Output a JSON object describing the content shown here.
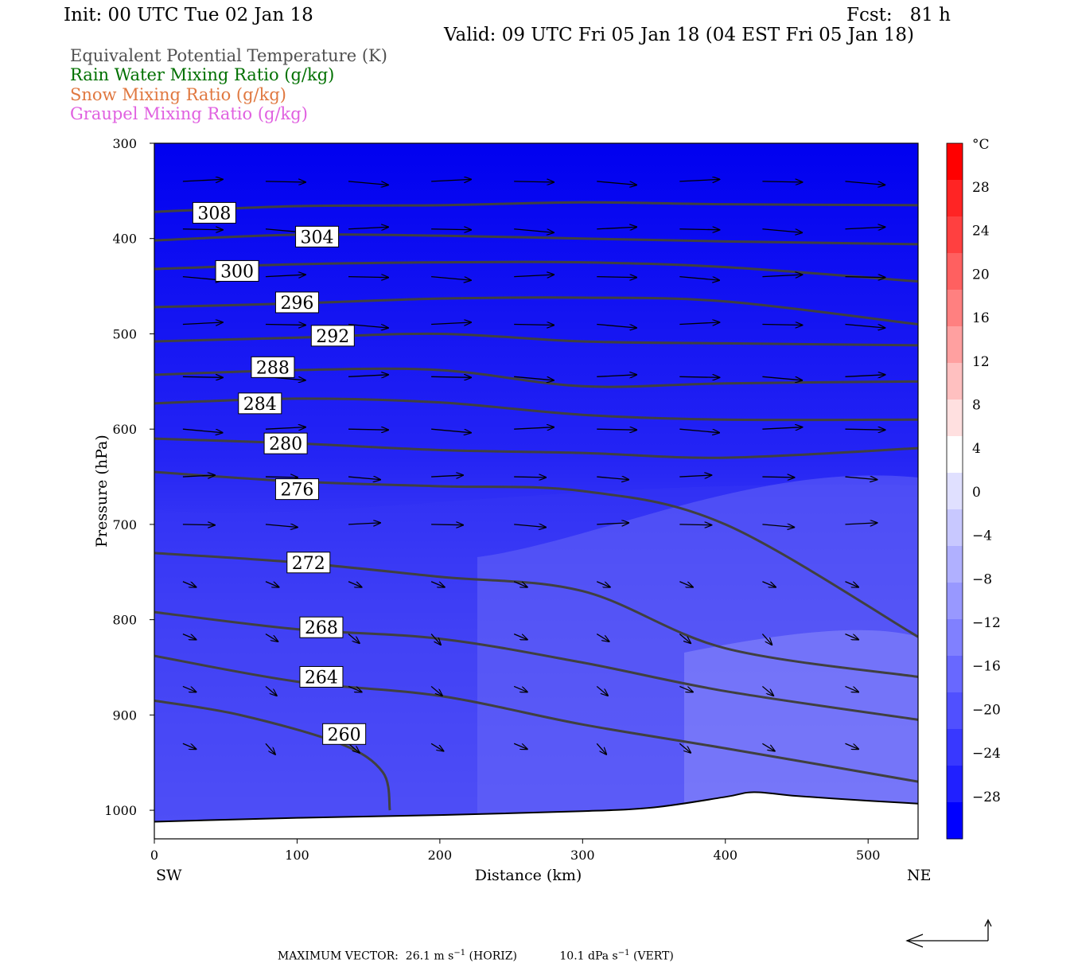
{
  "header": {
    "init": "Init: 00 UTC Tue 02 Jan 18",
    "fcst": "Fcst:   81 h",
    "valid": "Valid: 09 UTC Fri 05 Jan 18 (04 EST Fri 05 Jan 18)"
  },
  "legend": [
    {
      "label": "Equivalent Potential Temperature (K)",
      "color": "#505050"
    },
    {
      "label": "Rain Water Mixing Ratio (g/kg)",
      "color": "#007000"
    },
    {
      "label": "Snow Mixing Ratio (g/kg)",
      "color": "#e07840"
    },
    {
      "label": "Graupel Mixing Ratio (g/kg)",
      "color": "#e060e0"
    }
  ],
  "colors": {
    "fill_cold": "#0000f0",
    "fill_mid": "#5858f8",
    "fill_warm": "#8c8cfc",
    "contour": "#404040",
    "terrain": "#ffffff"
  },
  "chart_data": {
    "type": "cross-section",
    "xlabel": "Distance (km)",
    "ylabel": "Pressure (hPa)",
    "left_label": "SW",
    "right_label": "NE",
    "xlim": [
      0,
      535
    ],
    "ylim": [
      1030,
      300
    ],
    "xticks": [
      0,
      100,
      200,
      300,
      400,
      500
    ],
    "yticks": [
      300,
      400,
      500,
      600,
      700,
      800,
      900,
      1000
    ],
    "colorbar": {
      "unit": "°C",
      "labels": [
        "28",
        "24",
        "20",
        "16",
        "12",
        "8",
        "4",
        "0",
        "−4",
        "−8",
        "−12",
        "−16",
        "−20",
        "−24",
        "−28"
      ],
      "colors": [
        "#ff0000",
        "#ff2424",
        "#ff4040",
        "#ff6060",
        "#ff8080",
        "#ffa0a0",
        "#ffc0c0",
        "#ffe0e0",
        "#ffffff",
        "#e0e0ff",
        "#c8c8ff",
        "#b0b0ff",
        "#9898ff",
        "#8080ff",
        "#6868ff",
        "#5050ff",
        "#3838ff",
        "#2020ff",
        "#0000ff"
      ]
    },
    "theta_e_contours": [
      {
        "level": 308,
        "label": "308",
        "x": [
          0,
          100,
          200,
          300,
          400,
          535
        ],
        "p": [
          372,
          366,
          365,
          362,
          364,
          365
        ],
        "label_at": [
          42,
          373
        ]
      },
      {
        "level": 304,
        "label": "304",
        "x": [
          0,
          100,
          200,
          300,
          400,
          535
        ],
        "p": [
          402,
          396,
          397,
          400,
          403,
          406
        ],
        "label_at": [
          114,
          398
        ]
      },
      {
        "level": 300,
        "label": "300",
        "x": [
          0,
          100,
          200,
          300,
          400,
          535
        ],
        "p": [
          432,
          427,
          425,
          425,
          430,
          445
        ],
        "label_at": [
          58,
          434
        ]
      },
      {
        "level": 296,
        "label": "296",
        "x": [
          0,
          100,
          200,
          300,
          400,
          535
        ],
        "p": [
          472,
          468,
          463,
          462,
          466,
          490
        ],
        "label_at": [
          100,
          467
        ]
      },
      {
        "level": 292,
        "label": "292",
        "x": [
          0,
          100,
          200,
          300,
          400,
          535
        ],
        "p": [
          508,
          504,
          500,
          508,
          510,
          512
        ],
        "label_at": [
          125,
          502
        ]
      },
      {
        "level": 288,
        "label": "288",
        "x": [
          0,
          100,
          200,
          300,
          400,
          535
        ],
        "p": [
          543,
          538,
          538,
          555,
          552,
          550
        ],
        "label_at": [
          83,
          535
        ]
      },
      {
        "level": 284,
        "label": "284",
        "x": [
          0,
          100,
          200,
          300,
          400,
          535
        ],
        "p": [
          573,
          568,
          572,
          585,
          590,
          590
        ],
        "label_at": [
          74,
          573
        ]
      },
      {
        "level": 280,
        "label": "280",
        "x": [
          0,
          100,
          200,
          300,
          400,
          535
        ],
        "p": [
          610,
          615,
          622,
          625,
          630,
          620
        ],
        "label_at": [
          92,
          615
        ]
      },
      {
        "level": 276,
        "label": "276",
        "x": [
          0,
          100,
          200,
          300,
          400,
          535
        ],
        "p": [
          645,
          655,
          660,
          665,
          700,
          818
        ],
        "label_at": [
          100,
          663
        ]
      },
      {
        "level": 272,
        "label": "272",
        "x": [
          0,
          100,
          200,
          300,
          400,
          535
        ],
        "p": [
          730,
          740,
          755,
          770,
          830,
          860
        ],
        "label_at": [
          108,
          740
        ]
      },
      {
        "level": 268,
        "label": "268",
        "x": [
          0,
          100,
          200,
          300,
          400,
          535
        ],
        "p": [
          792,
          810,
          820,
          845,
          875,
          905
        ],
        "label_at": [
          117,
          808
        ]
      },
      {
        "level": 264,
        "label": "264",
        "x": [
          0,
          100,
          200,
          300,
          400,
          535
        ],
        "p": [
          838,
          865,
          880,
          910,
          935,
          970
        ],
        "label_at": [
          117,
          860
        ]
      },
      {
        "level": 260,
        "label": "260",
        "x": [
          0,
          60,
          130,
          160,
          165
        ],
        "p": [
          885,
          900,
          930,
          960,
          1000
        ],
        "label_at": [
          133,
          920
        ]
      }
    ],
    "surface_pressure": {
      "x": [
        0,
        100,
        200,
        300,
        350,
        400,
        420,
        450,
        500,
        535
      ],
      "p": [
        1012,
        1008,
        1005,
        1001,
        997,
        986,
        981,
        985,
        990,
        993
      ]
    },
    "vectors_note": "Circulation vectors, mostly westerly",
    "max_vector": {
      "label": "MAXIMUM VECTOR:",
      "horiz": "26.1 m s",
      "horiz_unit": "(HORIZ)",
      "vert": "10.1 dPa s",
      "vert_unit": "(VERT)",
      "sup": "−1"
    }
  }
}
